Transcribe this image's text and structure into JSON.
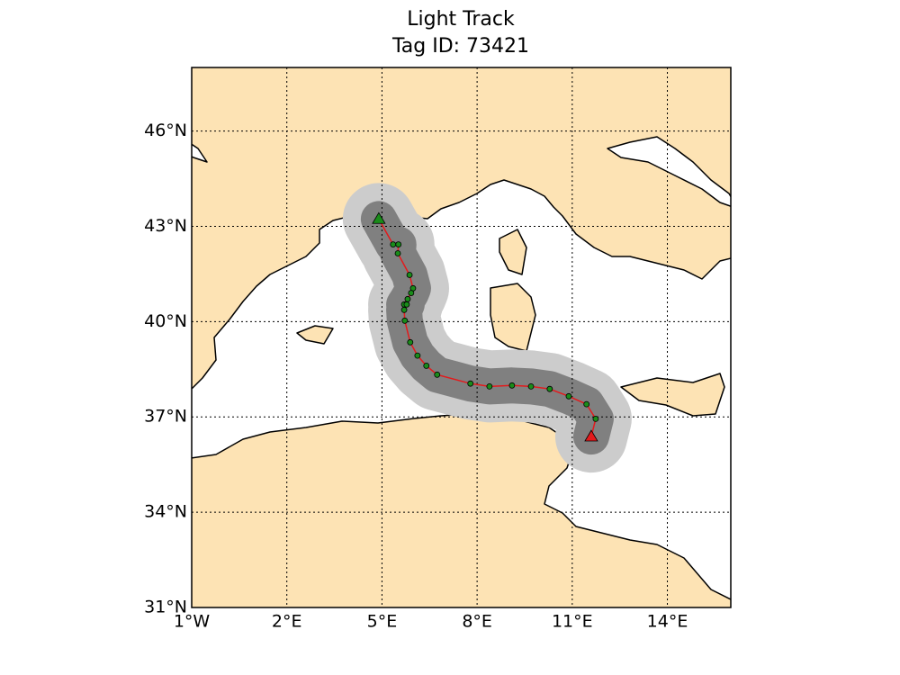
{
  "chart_data": {
    "type": "line",
    "title": "Light Track",
    "subtitle": "Tag ID: 73421",
    "x": [
      4.9,
      5.35,
      5.52,
      5.5,
      5.87,
      5.98,
      5.92,
      5.81,
      5.7,
      5.78,
      5.7,
      5.72,
      5.89,
      6.12,
      6.4,
      6.74,
      7.79,
      8.39,
      9.1,
      9.7,
      10.29,
      10.89,
      11.45,
      11.74,
      11.6
    ],
    "values": [
      43.23,
      42.43,
      42.43,
      42.15,
      41.47,
      41.05,
      40.9,
      40.71,
      40.54,
      40.54,
      40.37,
      40.03,
      39.35,
      38.93,
      38.61,
      38.33,
      38.05,
      37.96,
      37.99,
      37.96,
      37.88,
      37.65,
      37.4,
      36.94,
      36.38
    ],
    "color": "#e31a1c",
    "marker_color": "#1a8c1a",
    "start_color": "#1a8c1a",
    "end_color": "#e31a1c",
    "xlim": [
      -1,
      16
    ],
    "ylim": [
      31,
      48
    ],
    "xticks": [
      {
        "value": -1,
        "label": "1°W"
      },
      {
        "value": 2,
        "label": "2°E"
      },
      {
        "value": 5,
        "label": "5°E"
      },
      {
        "value": 8,
        "label": "8°E"
      },
      {
        "value": 11,
        "label": "11°E"
      },
      {
        "value": 14,
        "label": "14°E"
      }
    ],
    "yticks": [
      {
        "value": 31,
        "label": "31°N"
      },
      {
        "value": 34,
        "label": "34°N"
      },
      {
        "value": 37,
        "label": "37°N"
      },
      {
        "value": 40,
        "label": "40°N"
      },
      {
        "value": 43,
        "label": "43°N"
      },
      {
        "value": 46,
        "label": "46°N"
      }
    ],
    "grid": true
  }
}
